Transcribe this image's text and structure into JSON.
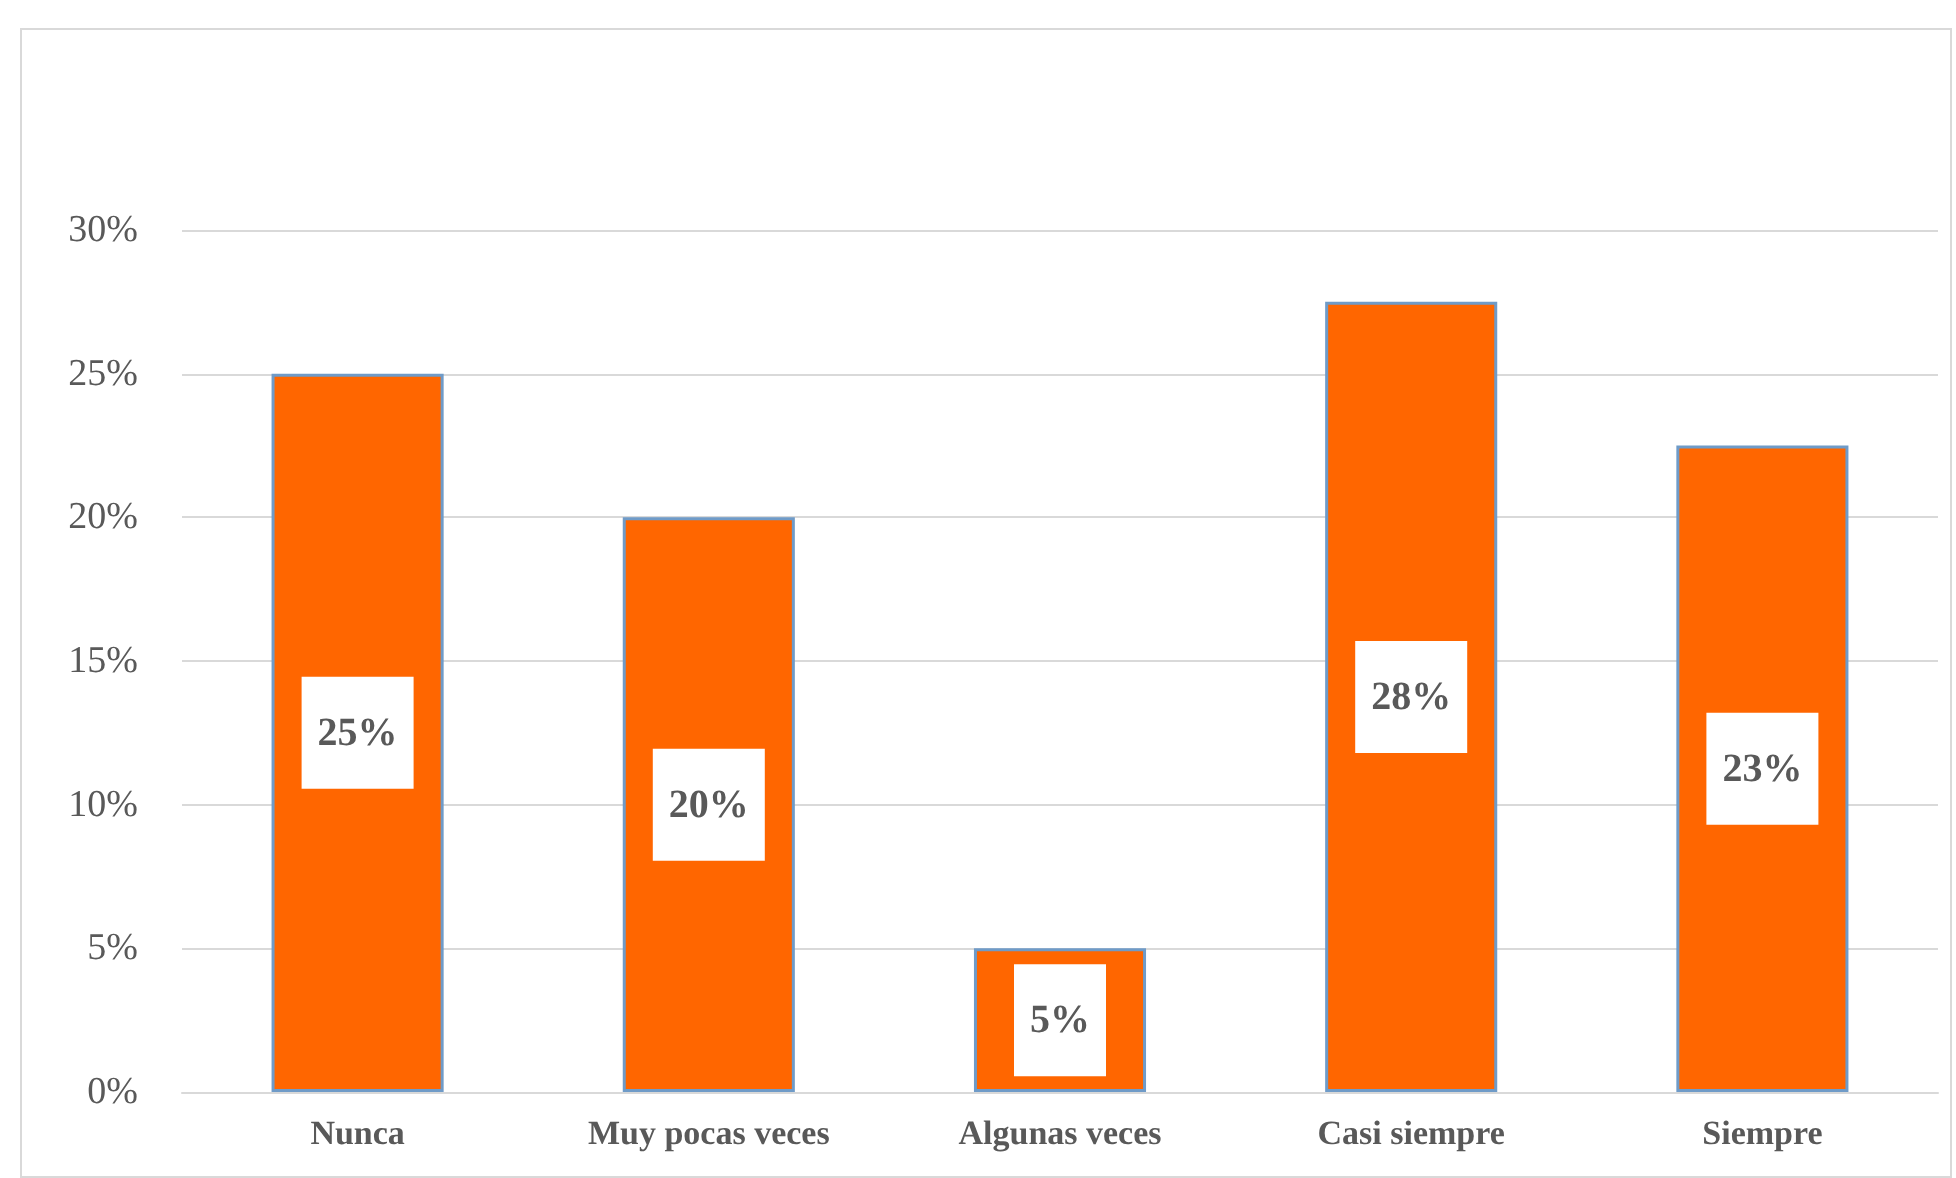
{
  "chart_data": {
    "type": "bar",
    "categories": [
      "Nunca",
      "Muy pocas veces",
      "Algunas veces",
      "Casi siempre",
      "Siempre"
    ],
    "values": [
      25,
      20,
      5,
      27.5,
      22.5
    ],
    "value_labels": [
      "25%",
      "20%",
      "5%",
      "28%",
      "23%"
    ],
    "color": "#ff6600",
    "ylim": [
      0,
      30
    ],
    "yticks": [
      {
        "value": 0,
        "label": "0%"
      },
      {
        "value": 5,
        "label": "5%"
      },
      {
        "value": 10,
        "label": "10%"
      },
      {
        "value": 15,
        "label": "15%"
      },
      {
        "value": 20,
        "label": "20%"
      },
      {
        "value": 25,
        "label": "25%"
      },
      {
        "value": 30,
        "label": "30%"
      }
    ],
    "grid": "y"
  }
}
